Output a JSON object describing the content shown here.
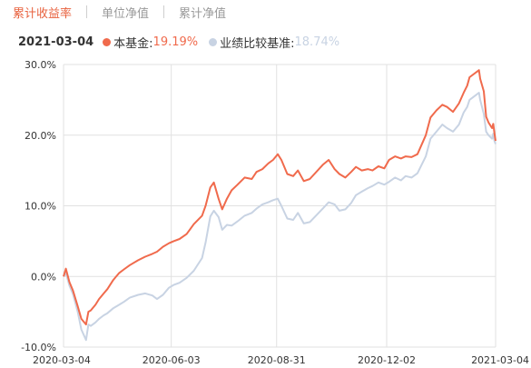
{
  "tabs": [
    {
      "label": "累计收益率",
      "active": true
    },
    {
      "label": "单位净值",
      "active": false
    },
    {
      "label": "累计净值",
      "active": false
    }
  ],
  "legend": {
    "date": "2021-03-04",
    "fund": {
      "name": "本基金:",
      "value": "19.19%",
      "color": "#f06a4c"
    },
    "benchmark": {
      "name": "业绩比较基准:",
      "value": "18.74%",
      "color": "#c8d3e3"
    }
  },
  "chart_data": {
    "type": "line",
    "ylim": [
      -10,
      30
    ],
    "y_ticks": [
      "30.0%",
      "20.0%",
      "10.0%",
      "0.0%",
      "-10.0%"
    ],
    "x_ticks": [
      "2020-03-04",
      "2020-06-03",
      "2020-08-31",
      "2020-12-02",
      "2021-03-04"
    ],
    "x_range": [
      "2020-03-04",
      "2021-03-04"
    ],
    "grid": true,
    "series": [
      {
        "name": "本基金",
        "color": "#f06a4c",
        "points": [
          [
            "2020-03-04",
            0.0
          ],
          [
            "2020-03-06",
            1.1
          ],
          [
            "2020-03-09",
            -0.8
          ],
          [
            "2020-03-12",
            -2.0
          ],
          [
            "2020-03-16",
            -4.2
          ],
          [
            "2020-03-19",
            -6.0
          ],
          [
            "2020-03-23",
            -6.8
          ],
          [
            "2020-03-25",
            -5.0
          ],
          [
            "2020-03-27",
            -4.8
          ],
          [
            "2020-03-31",
            -4.0
          ],
          [
            "2020-04-03",
            -3.2
          ],
          [
            "2020-04-07",
            -2.4
          ],
          [
            "2020-04-10",
            -1.8
          ],
          [
            "2020-04-15",
            -0.5
          ],
          [
            "2020-04-20",
            0.5
          ],
          [
            "2020-04-24",
            1.0
          ],
          [
            "2020-04-29",
            1.6
          ],
          [
            "2020-05-06",
            2.3
          ],
          [
            "2020-05-12",
            2.8
          ],
          [
            "2020-05-18",
            3.2
          ],
          [
            "2020-05-22",
            3.5
          ],
          [
            "2020-05-27",
            4.2
          ],
          [
            "2020-06-01",
            4.7
          ],
          [
            "2020-06-05",
            5.0
          ],
          [
            "2020-06-10",
            5.3
          ],
          [
            "2020-06-16",
            6.0
          ],
          [
            "2020-06-22",
            7.4
          ],
          [
            "2020-06-29",
            8.6
          ],
          [
            "2020-07-02",
            10.0
          ],
          [
            "2020-07-06",
            12.6
          ],
          [
            "2020-07-09",
            13.3
          ],
          [
            "2020-07-13",
            11.0
          ],
          [
            "2020-07-16",
            9.5
          ],
          [
            "2020-07-20",
            11.0
          ],
          [
            "2020-07-24",
            12.2
          ],
          [
            "2020-07-29",
            13.0
          ],
          [
            "2020-08-04",
            14.0
          ],
          [
            "2020-08-10",
            13.8
          ],
          [
            "2020-08-14",
            14.8
          ],
          [
            "2020-08-19",
            15.2
          ],
          [
            "2020-08-24",
            16.0
          ],
          [
            "2020-08-28",
            16.5
          ],
          [
            "2020-09-01",
            17.3
          ],
          [
            "2020-09-04",
            16.5
          ],
          [
            "2020-09-09",
            14.5
          ],
          [
            "2020-09-14",
            14.2
          ],
          [
            "2020-09-18",
            15.0
          ],
          [
            "2020-09-23",
            13.5
          ],
          [
            "2020-09-28",
            13.8
          ],
          [
            "2020-10-09",
            15.8
          ],
          [
            "2020-10-14",
            16.5
          ],
          [
            "2020-10-19",
            15.2
          ],
          [
            "2020-10-23",
            14.5
          ],
          [
            "2020-10-28",
            14.0
          ],
          [
            "2020-11-02",
            14.8
          ],
          [
            "2020-11-06",
            15.5
          ],
          [
            "2020-11-11",
            15.0
          ],
          [
            "2020-11-16",
            15.2
          ],
          [
            "2020-11-20",
            15.0
          ],
          [
            "2020-11-25",
            15.6
          ],
          [
            "2020-11-30",
            15.3
          ],
          [
            "2020-12-04",
            16.5
          ],
          [
            "2020-12-09",
            17.0
          ],
          [
            "2020-12-14",
            16.7
          ],
          [
            "2020-12-18",
            17.0
          ],
          [
            "2020-12-23",
            16.9
          ],
          [
            "2020-12-28",
            17.3
          ],
          [
            "2021-01-04",
            20.0
          ],
          [
            "2021-01-08",
            22.5
          ],
          [
            "2021-01-13",
            23.5
          ],
          [
            "2021-01-18",
            24.3
          ],
          [
            "2021-01-22",
            24.0
          ],
          [
            "2021-01-27",
            23.3
          ],
          [
            "2021-02-01",
            24.5
          ],
          [
            "2021-02-05",
            26.0
          ],
          [
            "2021-02-08",
            27.0
          ],
          [
            "2021-02-10",
            28.2
          ],
          [
            "2021-02-18",
            29.2
          ],
          [
            "2021-02-19",
            28.0
          ],
          [
            "2021-02-22",
            26.2
          ],
          [
            "2021-02-24",
            22.6
          ],
          [
            "2021-02-26",
            21.8
          ],
          [
            "2021-03-01",
            21.0
          ],
          [
            "2021-03-02",
            21.6
          ],
          [
            "2021-03-03",
            20.3
          ],
          [
            "2021-03-04",
            19.19
          ]
        ]
      },
      {
        "name": "业绩比较基准",
        "color": "#c8d3e3",
        "points": [
          [
            "2020-03-04",
            0.0
          ],
          [
            "2020-03-06",
            0.5
          ],
          [
            "2020-03-09",
            -1.3
          ],
          [
            "2020-03-12",
            -2.5
          ],
          [
            "2020-03-16",
            -5.0
          ],
          [
            "2020-03-19",
            -7.5
          ],
          [
            "2020-03-23",
            -9.0
          ],
          [
            "2020-03-25",
            -6.8
          ],
          [
            "2020-03-27",
            -7.0
          ],
          [
            "2020-03-31",
            -6.5
          ],
          [
            "2020-04-03",
            -6.0
          ],
          [
            "2020-04-07",
            -5.5
          ],
          [
            "2020-04-10",
            -5.2
          ],
          [
            "2020-04-15",
            -4.5
          ],
          [
            "2020-04-20",
            -4.0
          ],
          [
            "2020-04-24",
            -3.6
          ],
          [
            "2020-04-29",
            -3.0
          ],
          [
            "2020-05-06",
            -2.6
          ],
          [
            "2020-05-12",
            -2.4
          ],
          [
            "2020-05-18",
            -2.7
          ],
          [
            "2020-05-22",
            -3.2
          ],
          [
            "2020-05-27",
            -2.6
          ],
          [
            "2020-06-01",
            -1.6
          ],
          [
            "2020-06-05",
            -1.2
          ],
          [
            "2020-06-10",
            -0.9
          ],
          [
            "2020-06-16",
            -0.2
          ],
          [
            "2020-06-22",
            0.8
          ],
          [
            "2020-06-29",
            2.6
          ],
          [
            "2020-07-02",
            4.8
          ],
          [
            "2020-07-06",
            8.5
          ],
          [
            "2020-07-09",
            9.3
          ],
          [
            "2020-07-13",
            8.4
          ],
          [
            "2020-07-16",
            6.6
          ],
          [
            "2020-07-20",
            7.3
          ],
          [
            "2020-07-24",
            7.2
          ],
          [
            "2020-07-29",
            7.8
          ],
          [
            "2020-08-04",
            8.6
          ],
          [
            "2020-08-10",
            9.0
          ],
          [
            "2020-08-14",
            9.6
          ],
          [
            "2020-08-19",
            10.2
          ],
          [
            "2020-08-24",
            10.5
          ],
          [
            "2020-08-28",
            10.8
          ],
          [
            "2020-09-01",
            11.0
          ],
          [
            "2020-09-04",
            10.0
          ],
          [
            "2020-09-09",
            8.2
          ],
          [
            "2020-09-14",
            8.0
          ],
          [
            "2020-09-18",
            9.0
          ],
          [
            "2020-09-23",
            7.5
          ],
          [
            "2020-09-28",
            7.7
          ],
          [
            "2020-10-09",
            9.6
          ],
          [
            "2020-10-14",
            10.5
          ],
          [
            "2020-10-19",
            10.2
          ],
          [
            "2020-10-23",
            9.3
          ],
          [
            "2020-10-28",
            9.5
          ],
          [
            "2020-11-02",
            10.4
          ],
          [
            "2020-11-06",
            11.5
          ],
          [
            "2020-11-11",
            12.0
          ],
          [
            "2020-11-16",
            12.5
          ],
          [
            "2020-11-20",
            12.8
          ],
          [
            "2020-11-25",
            13.3
          ],
          [
            "2020-11-30",
            13.0
          ],
          [
            "2020-12-04",
            13.4
          ],
          [
            "2020-12-09",
            14.0
          ],
          [
            "2020-12-14",
            13.6
          ],
          [
            "2020-12-18",
            14.2
          ],
          [
            "2020-12-23",
            14.0
          ],
          [
            "2020-12-28",
            14.6
          ],
          [
            "2021-01-04",
            17.0
          ],
          [
            "2021-01-08",
            19.5
          ],
          [
            "2021-01-13",
            20.5
          ],
          [
            "2021-01-18",
            21.5
          ],
          [
            "2021-01-22",
            21.0
          ],
          [
            "2021-01-27",
            20.5
          ],
          [
            "2021-02-01",
            21.5
          ],
          [
            "2021-02-05",
            23.2
          ],
          [
            "2021-02-08",
            24.0
          ],
          [
            "2021-02-10",
            25.0
          ],
          [
            "2021-02-18",
            26.0
          ],
          [
            "2021-02-19",
            25.0
          ],
          [
            "2021-02-22",
            23.0
          ],
          [
            "2021-02-24",
            20.5
          ],
          [
            "2021-02-26",
            20.0
          ],
          [
            "2021-03-01",
            19.5
          ],
          [
            "2021-03-02",
            20.2
          ],
          [
            "2021-03-03",
            19.2
          ],
          [
            "2021-03-04",
            18.74
          ]
        ]
      }
    ]
  }
}
